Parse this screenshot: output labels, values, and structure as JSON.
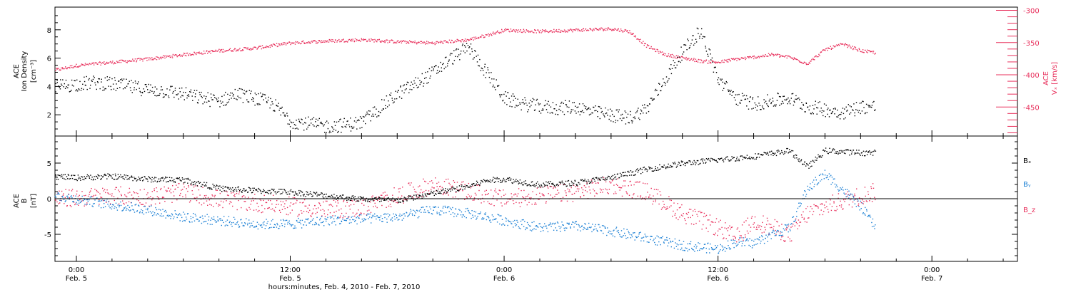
{
  "xaxis": {
    "title": "hours:minutes, Feb.  4, 2010 - Feb.  7, 2010",
    "ticks": [
      {
        "hours": 0,
        "time": "0:00",
        "date": "Feb. 5"
      },
      {
        "hours": 12,
        "time": "12:00",
        "date": "Feb. 5"
      },
      {
        "hours": 24,
        "time": "0:00",
        "date": "Feb. 6"
      },
      {
        "hours": 36,
        "time": "12:00",
        "date": "Feb. 6"
      },
      {
        "hours": 48,
        "time": "0:00",
        "date": "Feb. 7"
      }
    ],
    "range_hours": [
      -1.2,
      52.8
    ],
    "data_end_hours": 44.8
  },
  "colors": {
    "black": "#000000",
    "pink": "#e8305c",
    "blue": "#1a7fd4"
  },
  "chart_data": [
    {
      "type": "scatter",
      "title": "",
      "ylabel_left": [
        "ACE",
        "Ion Density",
        "[cm⁻³]"
      ],
      "ylabel_right": [
        "ACE",
        "Vₓ [km/s]"
      ],
      "ylim_left": [
        0.5,
        9.6
      ],
      "left_ticks": [
        2,
        4,
        6,
        8
      ],
      "ylim_right": [
        -495,
        -295
      ],
      "right_ticks": [
        -300,
        -350,
        -400,
        -450
      ],
      "series": [
        {
          "key": "density",
          "axis": "left",
          "color": "#000000",
          "x": [
            -1.2,
            0,
            1,
            2,
            3,
            4,
            5,
            6,
            7,
            8,
            9,
            10,
            11,
            12,
            13,
            14,
            15,
            16,
            17,
            18,
            19,
            20,
            21,
            22,
            23,
            24,
            25,
            26,
            27,
            28,
            29,
            30,
            31,
            32,
            33,
            34,
            35,
            36,
            37,
            38,
            39,
            40,
            41,
            42,
            43,
            44,
            44.8
          ],
          "y": [
            4.0,
            4.2,
            4.3,
            4.2,
            4.0,
            3.8,
            3.7,
            3.5,
            3.2,
            3.0,
            3.5,
            3.2,
            2.8,
            1.6,
            1.4,
            1.2,
            1.3,
            1.5,
            2.5,
            3.5,
            4.2,
            5.0,
            6.0,
            6.8,
            5.0,
            3.2,
            2.8,
            2.6,
            2.5,
            2.6,
            2.2,
            2.0,
            1.8,
            2.5,
            4.5,
            6.5,
            8.0,
            4.5,
            3.2,
            2.8,
            3.0,
            3.2,
            2.6,
            2.4,
            2.2,
            2.6,
            2.6
          ],
          "spread": 0.5
        },
        {
          "key": "vx",
          "axis": "right",
          "color": "#e8305c",
          "x": [
            -1.2,
            0,
            2,
            4,
            6,
            8,
            10,
            12,
            14,
            16,
            18,
            20,
            22,
            23,
            24,
            26,
            28,
            30,
            31,
            32,
            33,
            34,
            35,
            36,
            37,
            38,
            39,
            40,
            41,
            42,
            43,
            44,
            44.8
          ],
          "y": [
            -392,
            -385,
            -380,
            -375,
            -368,
            -362,
            -358,
            -350,
            -347,
            -345,
            -348,
            -350,
            -345,
            -338,
            -330,
            -332,
            -330,
            -328,
            -332,
            -355,
            -368,
            -373,
            -378,
            -380,
            -375,
            -372,
            -368,
            -372,
            -382,
            -360,
            -352,
            -362,
            -365
          ],
          "spread": 2.5
        }
      ]
    },
    {
      "type": "scatter",
      "title": "",
      "ylabel_left": [
        "ACE",
        "B",
        "[nT]"
      ],
      "ylim": [
        -8.8,
        8.8
      ],
      "ticks": [
        5,
        0,
        -5
      ],
      "zero_line": true,
      "series": [
        {
          "key": "bx",
          "name": "Bₓ",
          "color": "#000000",
          "x": [
            -1.2,
            0,
            2,
            4,
            6,
            8,
            10,
            12,
            14,
            16,
            18,
            20,
            22,
            23,
            24,
            26,
            28,
            30,
            32,
            34,
            36,
            38,
            40,
            41,
            42,
            44,
            44.8
          ],
          "y": [
            3.2,
            3.0,
            3.2,
            2.8,
            2.7,
            1.5,
            1.2,
            1.0,
            0.5,
            0.0,
            -0.2,
            0.8,
            1.8,
            2.6,
            2.8,
            2.0,
            2.3,
            3.0,
            4.2,
            5.0,
            5.5,
            6.0,
            6.8,
            4.5,
            6.8,
            6.5,
            6.5
          ],
          "spread": 0.4
        },
        {
          "key": "by",
          "name": "Bᵧ",
          "color": "#1a7fd4",
          "x": [
            -1.2,
            0,
            2,
            4,
            6,
            8,
            10,
            12,
            14,
            16,
            18,
            20,
            22,
            24,
            26,
            28,
            30,
            32,
            34,
            36,
            37,
            38,
            39,
            40,
            41,
            42,
            44,
            44.8
          ],
          "y": [
            0.5,
            0.0,
            -0.8,
            -1.5,
            -2.5,
            -3.0,
            -3.5,
            -3.5,
            -3.0,
            -2.8,
            -2.5,
            -1.5,
            -2.0,
            -3.0,
            -4.0,
            -3.8,
            -4.5,
            -5.5,
            -6.5,
            -7.0,
            -6.0,
            -6.2,
            -5.0,
            -4.0,
            1.5,
            3.5,
            -1.0,
            -4.0
          ],
          "spread": 0.7
        },
        {
          "key": "bz",
          "name": "B_z",
          "color": "#e8305c",
          "x": [
            -1.2,
            0,
            2,
            4,
            6,
            8,
            10,
            12,
            14,
            16,
            18,
            20,
            22,
            24,
            26,
            28,
            30,
            32,
            34,
            36,
            37,
            38,
            39,
            40,
            41,
            42,
            44,
            44.8
          ],
          "y": [
            0.0,
            0.2,
            0.5,
            0.3,
            1.0,
            0.0,
            -0.5,
            -1.0,
            -1.5,
            -1.2,
            0.5,
            2.0,
            1.0,
            0.0,
            0.5,
            1.0,
            2.0,
            1.0,
            -2.0,
            -4.0,
            -5.5,
            -3.0,
            -4.0,
            -5.0,
            -2.0,
            -1.0,
            0.5,
            1.0
          ],
          "spread": 1.3
        }
      ]
    }
  ]
}
